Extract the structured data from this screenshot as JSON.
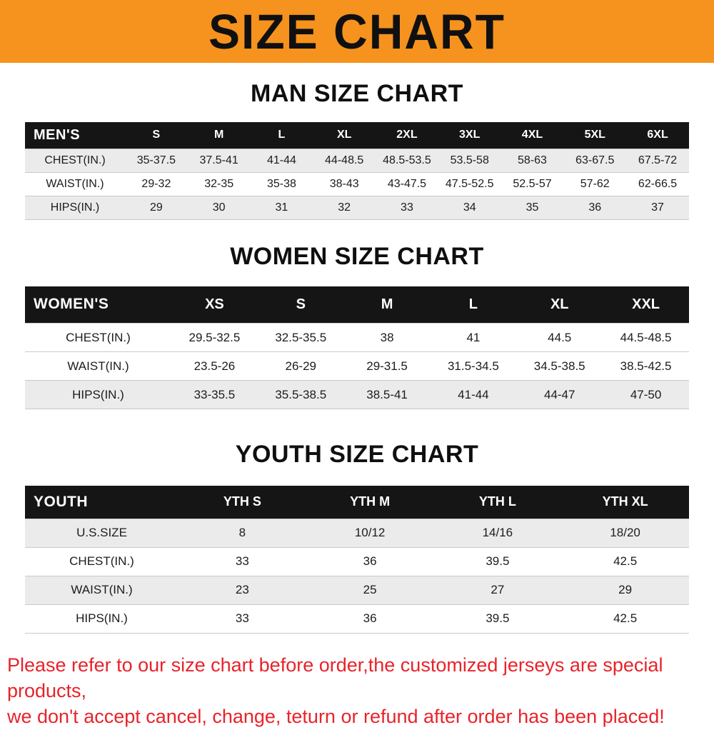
{
  "banner": {
    "title": "SIZE CHART",
    "bg_color": "#f6921e",
    "text_color": "#101010"
  },
  "sections": [
    {
      "heading": "MAN SIZE CHART",
      "table": {
        "header": [
          "MEN'S",
          "S",
          "M",
          "L",
          "XL",
          "2XL",
          "3XL",
          "4XL",
          "5XL",
          "6XL"
        ],
        "rows": [
          [
            "CHEST(IN.)",
            "35-37.5",
            "37.5-41",
            "41-44",
            "44-48.5",
            "48.5-53.5",
            "53.5-58",
            "58-63",
            "63-67.5",
            "67.5-72"
          ],
          [
            "WAIST(IN.)",
            "29-32",
            "32-35",
            "35-38",
            "38-43",
            "43-47.5",
            "47.5-52.5",
            "52.5-57",
            "57-62",
            "62-66.5"
          ],
          [
            "HIPS(IN.)",
            "29",
            "30",
            "31",
            "32",
            "33",
            "34",
            "35",
            "36",
            "37"
          ]
        ]
      }
    },
    {
      "heading": "WOMEN SIZE CHART",
      "table": {
        "header": [
          "WOMEN'S",
          "XS",
          "S",
          "M",
          "L",
          "XL",
          "XXL"
        ],
        "rows": [
          [
            "CHEST(IN.)",
            "29.5-32.5",
            "32.5-35.5",
            "38",
            "41",
            "44.5",
            "44.5-48.5"
          ],
          [
            "WAIST(IN.)",
            "23.5-26",
            "26-29",
            "29-31.5",
            "31.5-34.5",
            "34.5-38.5",
            "38.5-42.5"
          ],
          [
            "HIPS(IN.)",
            "33-35.5",
            "35.5-38.5",
            "38.5-41",
            "41-44",
            "44-47",
            "47-50"
          ]
        ]
      }
    },
    {
      "heading": "YOUTH SIZE CHART",
      "table": {
        "header": [
          "YOUTH",
          "YTH S",
          "YTH M",
          "YTH L",
          "YTH XL"
        ],
        "rows": [
          [
            "U.S.SIZE",
            "8",
            "10/12",
            "14/16",
            "18/20"
          ],
          [
            "CHEST(IN.)",
            "33",
            "36",
            "39.5",
            "42.5"
          ],
          [
            "WAIST(IN.)",
            "23",
            "25",
            "27",
            "29"
          ],
          [
            "HIPS(IN.)",
            "33",
            "36",
            "39.5",
            "42.5"
          ]
        ]
      }
    }
  ],
  "footer": {
    "line1": "Please refer to our size chart before order,the customized jerseys are special products,",
    "line2": "we don't accept cancel, change, teturn or refund after order has been placed!",
    "color": "#e8232a"
  }
}
